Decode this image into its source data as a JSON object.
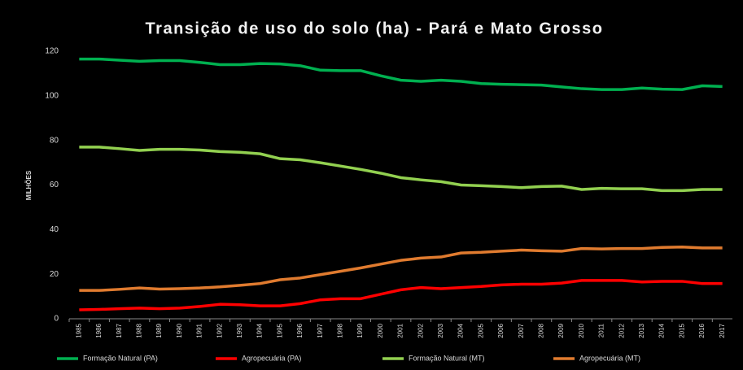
{
  "chart_data": {
    "type": "line",
    "title": "Transição de uso do solo (ha) - Pará e Mato Grosso",
    "y_label": "MILHÕES",
    "categories": [
      "1985",
      "1986",
      "1987",
      "1988",
      "1989",
      "1990",
      "1991",
      "1992",
      "1993",
      "1994",
      "1995",
      "1996",
      "1997",
      "1998",
      "1999",
      "2000",
      "2001",
      "2002",
      "2003",
      "2004",
      "2005",
      "2006",
      "2007",
      "2008",
      "2009",
      "2010",
      "2011",
      "2012",
      "2013",
      "2014",
      "2015",
      "2016",
      "2017"
    ],
    "series": [
      {
        "name": "Formação Natural (PA)",
        "color": "#00b050",
        "values": [
          116.5,
          116.5,
          116,
          115.5,
          115.8,
          115.8,
          115,
          114,
          114,
          114.5,
          114.3,
          113.5,
          111.5,
          111.3,
          111.3,
          109,
          107,
          106.5,
          107,
          106.5,
          105.5,
          105.2,
          105,
          104.8,
          104,
          103.2,
          102.8,
          102.8,
          103.5,
          103,
          102.8,
          104.5,
          104.2
        ]
      },
      {
        "name": "Agropecuária (PA)",
        "color": "#ff0000",
        "values": [
          4,
          4.2,
          4.5,
          4.8,
          4.5,
          4.8,
          5.5,
          6.5,
          6.3,
          5.8,
          5.8,
          6.8,
          8.5,
          9,
          9,
          11,
          13,
          14,
          13.5,
          14,
          14.5,
          15.2,
          15.5,
          15.5,
          16,
          17.2,
          17.2,
          17.2,
          16.5,
          16.8,
          16.8,
          15.8,
          15.8
        ]
      },
      {
        "name": "Formação Natural (MT)",
        "color": "#92d050",
        "values": [
          77,
          77,
          76.3,
          75.5,
          76,
          76,
          75.7,
          75,
          74.7,
          74,
          71.8,
          71.3,
          70,
          68.5,
          67,
          65.3,
          63.3,
          62.3,
          61.5,
          60,
          59.7,
          59.3,
          58.8,
          59.3,
          59.5,
          58,
          58.5,
          58.3,
          58.3,
          57.5,
          57.5,
          58,
          58
        ]
      },
      {
        "name": "Agropecuária (MT)",
        "color": "#e07b2f",
        "values": [
          12.7,
          12.7,
          13.2,
          13.8,
          13.3,
          13.5,
          13.8,
          14.3,
          15,
          15.8,
          17.5,
          18.3,
          19.8,
          21.3,
          22.8,
          24.5,
          26.2,
          27.2,
          27.7,
          29.5,
          29.8,
          30.3,
          30.8,
          30.5,
          30.3,
          31.5,
          31.3,
          31.5,
          31.5,
          32,
          32.2,
          31.8,
          31.8
        ]
      }
    ],
    "ylim": [
      0,
      120
    ],
    "yticks": [
      0,
      20,
      40,
      60,
      80,
      100,
      120
    ],
    "grid": false,
    "legend": "bottom"
  }
}
